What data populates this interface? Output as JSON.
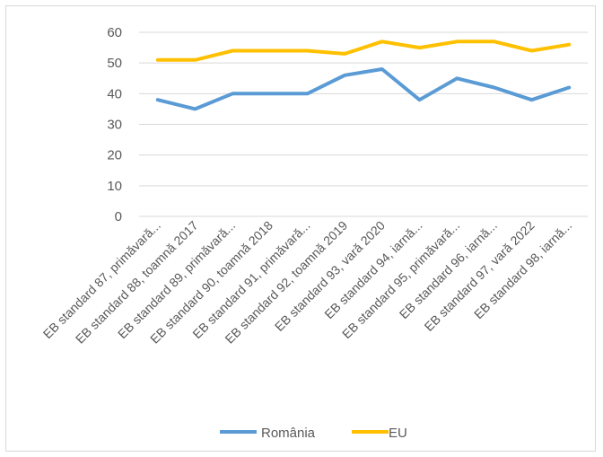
{
  "chart_data": {
    "type": "line",
    "categories": [
      "EB standard 87, primăvară...",
      "EB standard 88, toamnă 2017",
      "EB standard 89, primăvară...",
      "EB standard 90, toamnă 2018",
      "EB standard 91, primăvară...",
      "EB standard 92, toamnă 2019",
      "EB standard 93, vară 2020",
      "EB standard 94, iarnă...",
      "EB standard 95, primăvară...",
      "EB standard 96, iarnă...",
      "EB standard 97, vară 2022",
      "EB standard 98, iarnă..."
    ],
    "series": [
      {
        "name": "România",
        "color": "#5b9bd5",
        "values": [
          38,
          35,
          40,
          40,
          40,
          46,
          48,
          38,
          45,
          42,
          38,
          42
        ]
      },
      {
        "name": "EU",
        "color": "#ffc000",
        "values": [
          51,
          51,
          54,
          54,
          54,
          53,
          57,
          55,
          57,
          57,
          54,
          56
        ]
      }
    ],
    "ylim": [
      0,
      60
    ],
    "yticks": [
      0,
      10,
      20,
      30,
      40,
      50,
      60
    ],
    "grid": true,
    "legend": "bottom"
  }
}
